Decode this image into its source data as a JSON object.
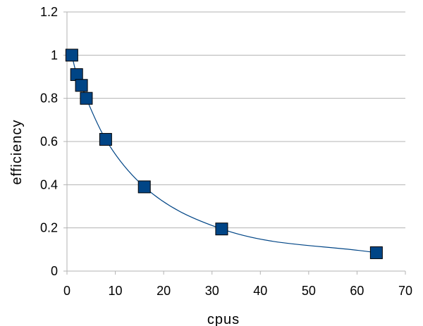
{
  "chart_data": {
    "type": "scatter",
    "title": "",
    "xlabel": "cpus",
    "ylabel": "efficiency",
    "xlim": [
      0,
      70
    ],
    "ylim": [
      0,
      1.2
    ],
    "x_ticks": [
      "0",
      "10",
      "20",
      "30",
      "40",
      "50",
      "60",
      "70"
    ],
    "y_ticks": [
      "0",
      "0.2",
      "0.4",
      "0.6",
      "0.8",
      "1",
      "1.2"
    ],
    "grid": true,
    "trendline": true,
    "series": [
      {
        "x": [
          1,
          2,
          3,
          4,
          8,
          16,
          32,
          64
        ],
        "y": [
          1.0,
          0.91,
          0.86,
          0.8,
          0.61,
          0.39,
          0.195,
          0.085
        ],
        "marker": "square"
      }
    ],
    "colors": {
      "marker_fill": "#004586",
      "marker_stroke": "#000000",
      "line": "#004586",
      "grid": "#b3b3b3"
    }
  }
}
